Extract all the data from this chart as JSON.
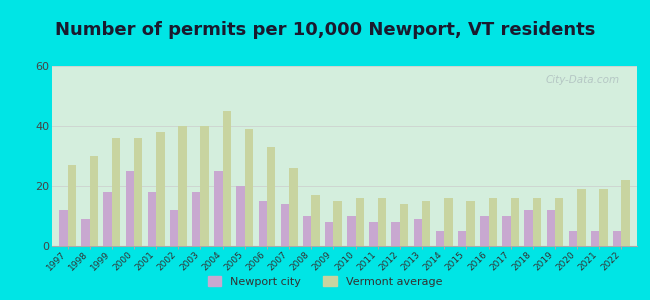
{
  "title": "Number of permits per 10,000 Newport, VT residents",
  "years": [
    1997,
    1998,
    1999,
    2000,
    2001,
    2002,
    2003,
    2004,
    2005,
    2006,
    2007,
    2008,
    2009,
    2010,
    2011,
    2012,
    2013,
    2014,
    2015,
    2016,
    2017,
    2018,
    2019,
    2020,
    2021,
    2022
  ],
  "newport_city": [
    12,
    9,
    18,
    25,
    18,
    12,
    18,
    25,
    20,
    15,
    14,
    10,
    8,
    10,
    8,
    8,
    9,
    5,
    5,
    10,
    10,
    12,
    12,
    5,
    5,
    5
  ],
  "vermont_avg": [
    27,
    30,
    36,
    36,
    38,
    40,
    40,
    45,
    39,
    33,
    26,
    17,
    15,
    16,
    16,
    14,
    15,
    16,
    15,
    16,
    16,
    16,
    16,
    19,
    19,
    22
  ],
  "newport_color": "#c8a8d0",
  "vermont_color": "#c8d4a0",
  "plot_bg_left": "#d4eedd",
  "plot_bg_right": "#f0faee",
  "outer_bg": "#00e5e5",
  "ylim": [
    0,
    60
  ],
  "yticks": [
    0,
    20,
    40,
    60
  ],
  "title_fontsize": 13,
  "watermark": "City-Data.com",
  "legend_newport": "Newport city",
  "legend_vermont": "Vermont average"
}
